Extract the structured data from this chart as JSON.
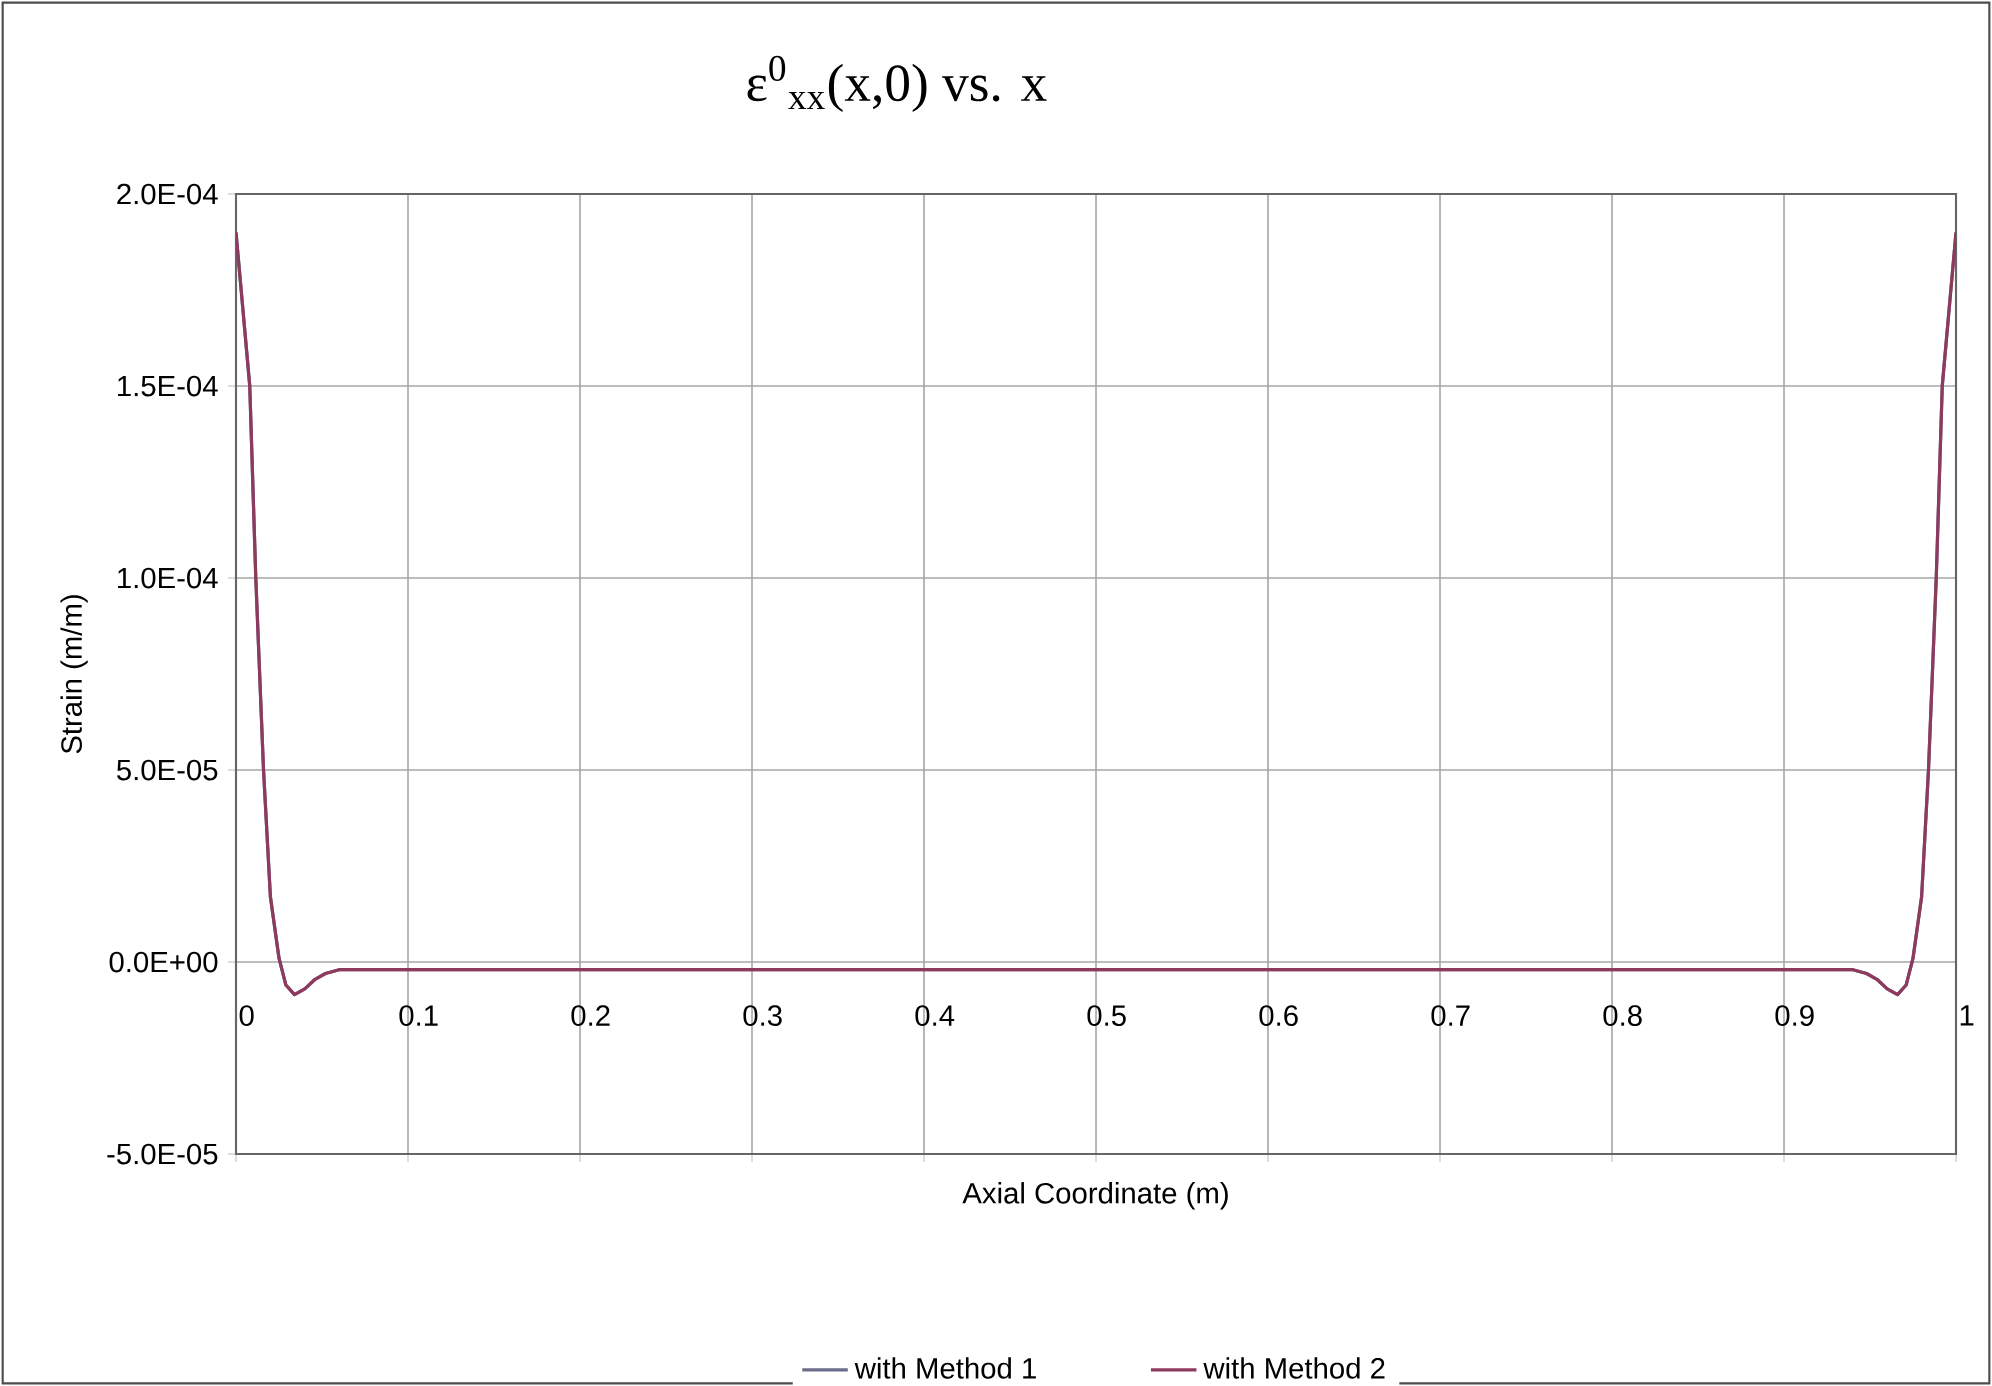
{
  "chart_data": {
    "type": "line",
    "title": "ε$^{0}$$_{xx}$(x,0) vs. x",
    "xlabel": "Axial Coordinate (m)",
    "ylabel": "Strain (m/m)",
    "x": [
      0,
      0.004,
      0.008,
      0.0115,
      0.016,
      0.02,
      0.025,
      0.029,
      0.034,
      0.04,
      0.046,
      0.052,
      0.06,
      0.1,
      0.5,
      0.9,
      0.94,
      0.948,
      0.954,
      0.96,
      0.966,
      0.971,
      0.975,
      0.98,
      0.984,
      0.9885,
      0.992,
      0.996,
      1
    ],
    "series": [
      {
        "name": "with Method 1",
        "color": "#6c6c8a",
        "values": [
          0.00019,
          0.00017,
          0.00015,
          0.0001,
          5e-05,
          1.7e-05,
          1e-06,
          -6e-06,
          -8.5e-06,
          -7e-06,
          -4.5e-06,
          -3e-06,
          -2e-06,
          -2e-06,
          -2e-06,
          -2e-06,
          -2e-06,
          -3e-06,
          -4.5e-06,
          -7e-06,
          -8.5e-06,
          -6e-06,
          1e-06,
          1.7e-05,
          5e-05,
          0.0001,
          0.00015,
          0.00017,
          0.00019
        ]
      },
      {
        "name": "with Method 2",
        "color": "#8e3a5e",
        "values": [
          0.00019,
          0.00017,
          0.00015,
          0.0001,
          5e-05,
          1.7e-05,
          1e-06,
          -6e-06,
          -8.5e-06,
          -7e-06,
          -4.5e-06,
          -3e-06,
          -2e-06,
          -2e-06,
          -2e-06,
          -2e-06,
          -2e-06,
          -3e-06,
          -4.5e-06,
          -7e-06,
          -8.5e-06,
          -6e-06,
          1e-06,
          1.7e-05,
          5e-05,
          0.0001,
          0.00015,
          0.00017,
          0.00019
        ]
      }
    ],
    "xlim": [
      0,
      1
    ],
    "xticks": [
      0,
      0.1,
      0.2,
      0.3,
      0.4,
      0.5,
      0.6,
      0.7,
      0.8,
      0.9,
      1
    ],
    "ylim": [
      -5e-05,
      0.0002
    ],
    "yticks": [
      {
        "value": -5e-05,
        "label": "-5.0E-05"
      },
      {
        "value": 0,
        "label": "0.0E+00"
      },
      {
        "value": 5e-05,
        "label": "5.0E-05"
      },
      {
        "value": 0.0001,
        "label": "1.0E-04"
      },
      {
        "value": 0.00015,
        "label": "1.5E-04"
      },
      {
        "value": 0.0002,
        "label": "2.0E-04"
      }
    ],
    "grid": true,
    "legend": "bottom",
    "marker": "none",
    "line_style": "solid"
  }
}
